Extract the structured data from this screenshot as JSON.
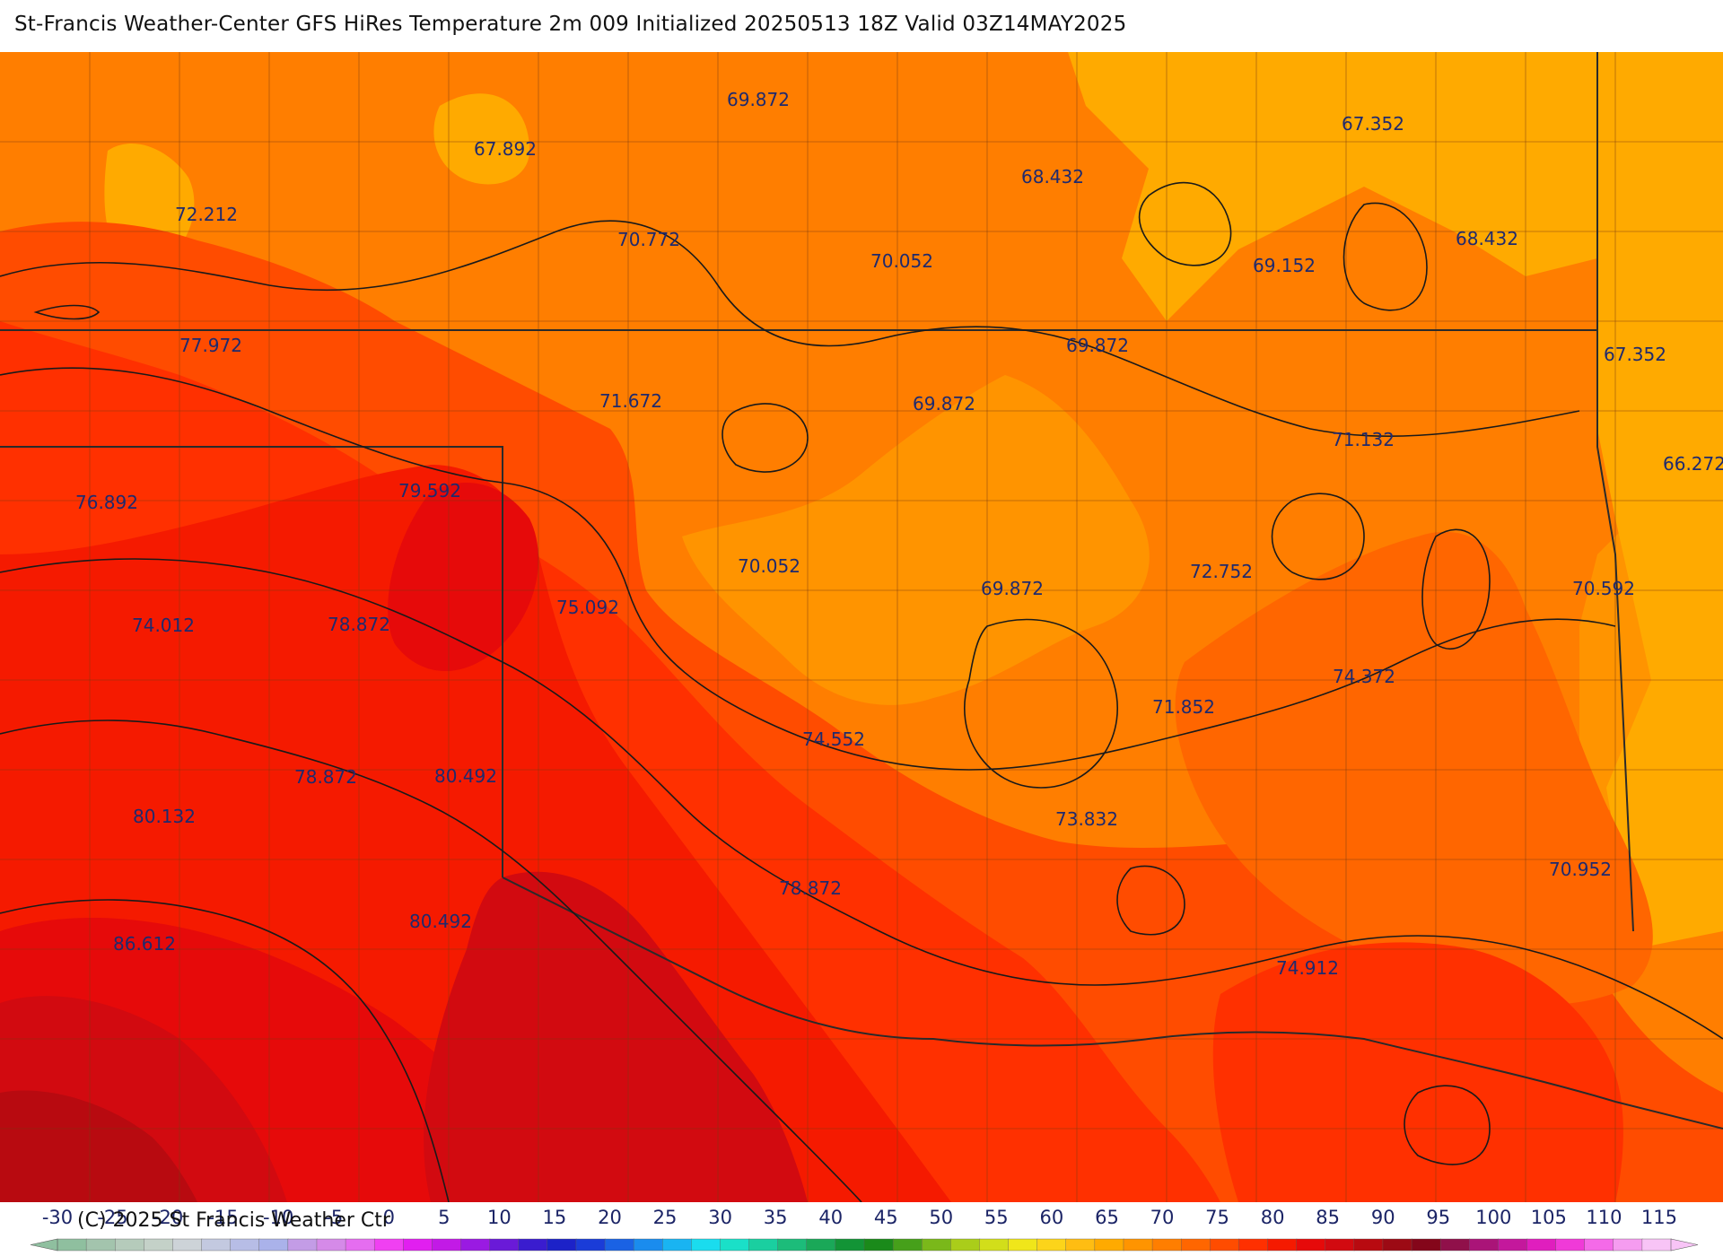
{
  "title": "St-Francis Weather-Center GFS HiRes Temperature 2m  009 Initialized 20250513 18Z Valid 03Z14MAY2025",
  "copyright": "(C) 2025 St Francis Weather Ctr",
  "map_labels": [
    "69.872",
    "67.892",
    "67.352",
    "68.432",
    "72.212",
    "70.772",
    "70.052",
    "69.152",
    "68.432",
    "77.972",
    "69.872",
    "67.352",
    "71.672",
    "69.872",
    "71.132",
    "76.892",
    "79.592",
    "66.272",
    "70.052",
    "72.752",
    "69.872",
    "70.592",
    "75.092",
    "74.012",
    "78.872",
    "74.372",
    "71.852",
    "74.552",
    "78.872",
    "80.492",
    "73.832",
    "80.132",
    "70.952",
    "78.872",
    "80.492",
    "86.612",
    "74.912"
  ],
  "legend": {
    "ticks": [
      "-30",
      "-25",
      "-20",
      "-15",
      "-10",
      "-5",
      "0",
      "5",
      "10",
      "15",
      "20",
      "25",
      "30",
      "35",
      "40",
      "45",
      "50",
      "55",
      "60",
      "65",
      "70",
      "75",
      "80",
      "85",
      "90",
      "95",
      "100",
      "105",
      "110",
      "115"
    ],
    "colors": [
      "#8fbf9f",
      "#a3c4ad",
      "#b5cbbb",
      "#c4d1c8",
      "#cdd3d8",
      "#c3c9e0",
      "#b7bde6",
      "#aab2ea",
      "#c39ce6",
      "#d58ae8",
      "#e56df0",
      "#f040f2",
      "#e11ff0",
      "#c21ae6",
      "#9a1ae2",
      "#6a1ad8",
      "#3a1ccf",
      "#1c22c8",
      "#1a3cd8",
      "#1a62e4",
      "#1a8cee",
      "#19b4f2",
      "#1adcee",
      "#1ae0c8",
      "#1acfa0",
      "#1cbc7a",
      "#1aa858",
      "#129436",
      "#1a8a1a",
      "#46a01a",
      "#7ab81a",
      "#aacd1a",
      "#d2de1a",
      "#f0e61a",
      "#fcd41a",
      "#ffbd12",
      "#ffaa00",
      "#ff9400",
      "#ff7e00",
      "#ff6600",
      "#ff4c00",
      "#ff3000",
      "#f51a00",
      "#e60a0a",
      "#d20a10",
      "#b80a10",
      "#9c0a14",
      "#84061a",
      "#90104a",
      "#aa1478",
      "#c4189c",
      "#e01ebe",
      "#f03ad8",
      "#f46ae8",
      "#f59cf0",
      "#f8c4f6"
    ]
  }
}
